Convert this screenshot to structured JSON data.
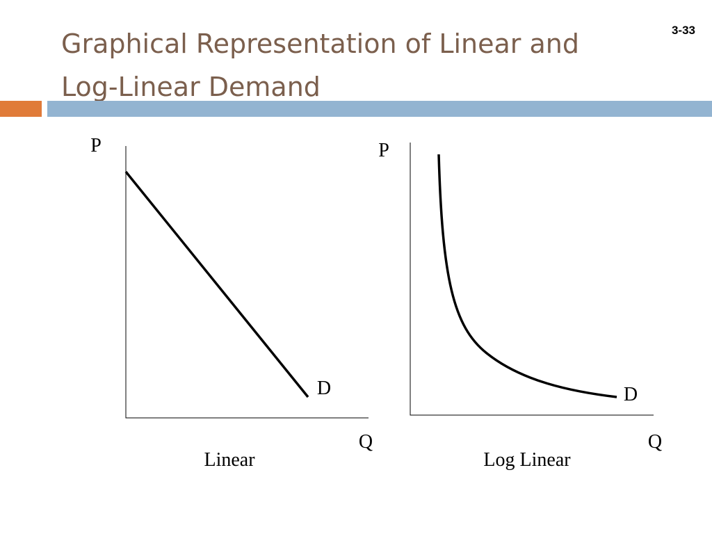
{
  "slide_number": "3-33",
  "title_lines": [
    "Graphical Representation of Linear and",
    "Log-Linear Demand"
  ],
  "diagrams": [
    {
      "y_axis_label": "P",
      "x_axis_label": "Q",
      "curve_label": "D",
      "caption": "Linear"
    },
    {
      "y_axis_label": "P",
      "x_axis_label": "Q",
      "curve_label": "D",
      "caption": "Log Linear"
    }
  ]
}
